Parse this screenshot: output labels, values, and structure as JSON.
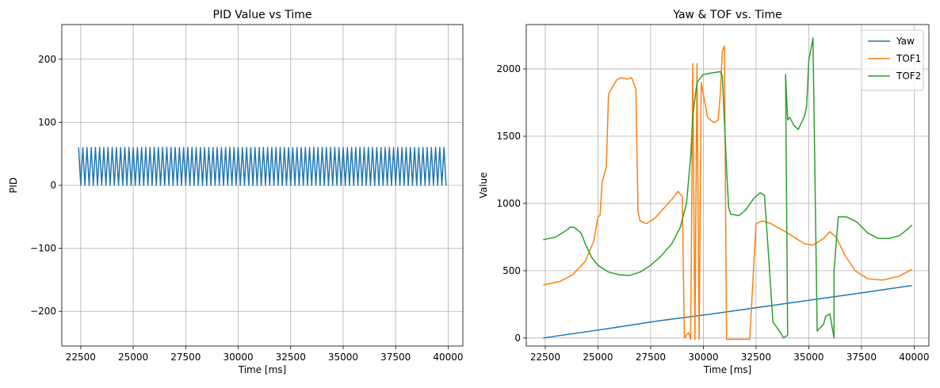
{
  "chart_data": [
    {
      "type": "line",
      "title": "PID Value vs Time",
      "xlabel": "Time [ms]",
      "ylabel": "PID",
      "xlim": [
        21600,
        40700
      ],
      "ylim": [
        -255,
        255
      ],
      "xticks": [
        22500,
        25000,
        27500,
        30000,
        32500,
        35000,
        37500,
        40000
      ],
      "yticks": [
        -200,
        -100,
        0,
        100,
        200
      ],
      "ytick_labels": [
        "−200",
        "−100",
        "0",
        "100",
        "200"
      ],
      "grid": true,
      "legend": null,
      "series": [
        {
          "color": "#1f77b4",
          "x_start": 22400,
          "x_end": 39900,
          "period": 200,
          "high": 60,
          "low": 0
        }
      ]
    },
    {
      "type": "line",
      "title": "Yaw & TOF vs. Time",
      "xlabel": "Time [ms]",
      "ylabel": "Value",
      "xlim": [
        21600,
        40700
      ],
      "ylim": [
        -60,
        2330
      ],
      "xticks": [
        22500,
        25000,
        27500,
        30000,
        32500,
        35000,
        37500,
        40000
      ],
      "yticks": [
        0,
        500,
        1000,
        1500,
        2000
      ],
      "grid": true,
      "legend": "top-right",
      "series": [
        {
          "name": "Yaw",
          "color": "#1f77b4",
          "points": [
            [
              22400,
              0
            ],
            [
              25500,
              70
            ],
            [
              28000,
              130
            ],
            [
              30000,
              170
            ],
            [
              32500,
              225
            ],
            [
              35000,
              280
            ],
            [
              37500,
              335
            ],
            [
              39900,
              390
            ]
          ]
        },
        {
          "name": "TOF1",
          "color": "#ff7f0e",
          "points": [
            [
              22400,
              395
            ],
            [
              23200,
              420
            ],
            [
              23800,
              470
            ],
            [
              24400,
              570
            ],
            [
              24800,
              720
            ],
            [
              25000,
              900
            ],
            [
              25100,
              910
            ],
            [
              25200,
              1160
            ],
            [
              25400,
              1270
            ],
            [
              25500,
              1810
            ],
            [
              25700,
              1870
            ],
            [
              25900,
              1920
            ],
            [
              26100,
              1935
            ],
            [
              26400,
              1925
            ],
            [
              26600,
              1935
            ],
            [
              26800,
              1850
            ],
            [
              26900,
              940
            ],
            [
              27000,
              870
            ],
            [
              27300,
              850
            ],
            [
              27700,
              890
            ],
            [
              28100,
              960
            ],
            [
              28500,
              1030
            ],
            [
              28800,
              1090
            ],
            [
              29000,
              1050
            ],
            [
              29100,
              0
            ],
            [
              29300,
              40
            ],
            [
              29400,
              -10
            ],
            [
              29500,
              2040
            ],
            [
              29600,
              -10
            ],
            [
              29700,
              2040
            ],
            [
              29800,
              -10
            ],
            [
              29900,
              1900
            ],
            [
              30200,
              1640
            ],
            [
              30500,
              1600
            ],
            [
              30700,
              1620
            ],
            [
              30800,
              1800
            ],
            [
              30900,
              2130
            ],
            [
              31000,
              2170
            ],
            [
              31100,
              -10
            ],
            [
              32200,
              -10
            ],
            [
              32500,
              850
            ],
            [
              32800,
              870
            ],
            [
              33200,
              850
            ],
            [
              34000,
              780
            ],
            [
              34800,
              700
            ],
            [
              35200,
              690
            ],
            [
              35700,
              740
            ],
            [
              36000,
              790
            ],
            [
              36300,
              750
            ],
            [
              36700,
              620
            ],
            [
              37200,
              500
            ],
            [
              37800,
              440
            ],
            [
              38500,
              430
            ],
            [
              39300,
              460
            ],
            [
              39900,
              510
            ]
          ]
        },
        {
          "name": "TOF2",
          "color": "#2ca02c",
          "points": [
            [
              22400,
              730
            ],
            [
              23000,
              750
            ],
            [
              23500,
              800
            ],
            [
              23700,
              825
            ],
            [
              23900,
              820
            ],
            [
              24200,
              780
            ],
            [
              24400,
              700
            ],
            [
              24700,
              600
            ],
            [
              25000,
              540
            ],
            [
              25500,
              490
            ],
            [
              26000,
              470
            ],
            [
              26500,
              465
            ],
            [
              27000,
              490
            ],
            [
              27500,
              540
            ],
            [
              28000,
              610
            ],
            [
              28500,
              700
            ],
            [
              28900,
              820
            ],
            [
              29200,
              1000
            ],
            [
              29400,
              1350
            ],
            [
              29500,
              1650
            ],
            [
              29600,
              1780
            ],
            [
              29700,
              1900
            ],
            [
              30000,
              1960
            ],
            [
              30400,
              1970
            ],
            [
              30800,
              1980
            ],
            [
              30900,
              1950
            ],
            [
              31100,
              1260
            ],
            [
              31200,
              970
            ],
            [
              31300,
              920
            ],
            [
              31700,
              910
            ],
            [
              32000,
              950
            ],
            [
              32400,
              1040
            ],
            [
              32700,
              1080
            ],
            [
              32900,
              1060
            ],
            [
              33100,
              600
            ],
            [
              33300,
              120
            ],
            [
              33700,
              30
            ],
            [
              33800,
              0
            ],
            [
              34000,
              20
            ],
            [
              33900,
              1960
            ],
            [
              34000,
              1620
            ],
            [
              34100,
              1640
            ],
            [
              34300,
              1580
            ],
            [
              34500,
              1550
            ],
            [
              34800,
              1650
            ],
            [
              34900,
              1720
            ],
            [
              35000,
              2060
            ],
            [
              35200,
              2230
            ],
            [
              35400,
              50
            ],
            [
              35500,
              70
            ],
            [
              35700,
              100
            ],
            [
              35800,
              160
            ],
            [
              36000,
              180
            ],
            [
              36200,
              0
            ],
            [
              36200,
              500
            ],
            [
              36400,
              900
            ],
            [
              36800,
              900
            ],
            [
              37300,
              860
            ],
            [
              37800,
              780
            ],
            [
              38300,
              740
            ],
            [
              38800,
              740
            ],
            [
              39300,
              760
            ],
            [
              39700,
              810
            ],
            [
              39900,
              840
            ]
          ]
        }
      ]
    }
  ]
}
